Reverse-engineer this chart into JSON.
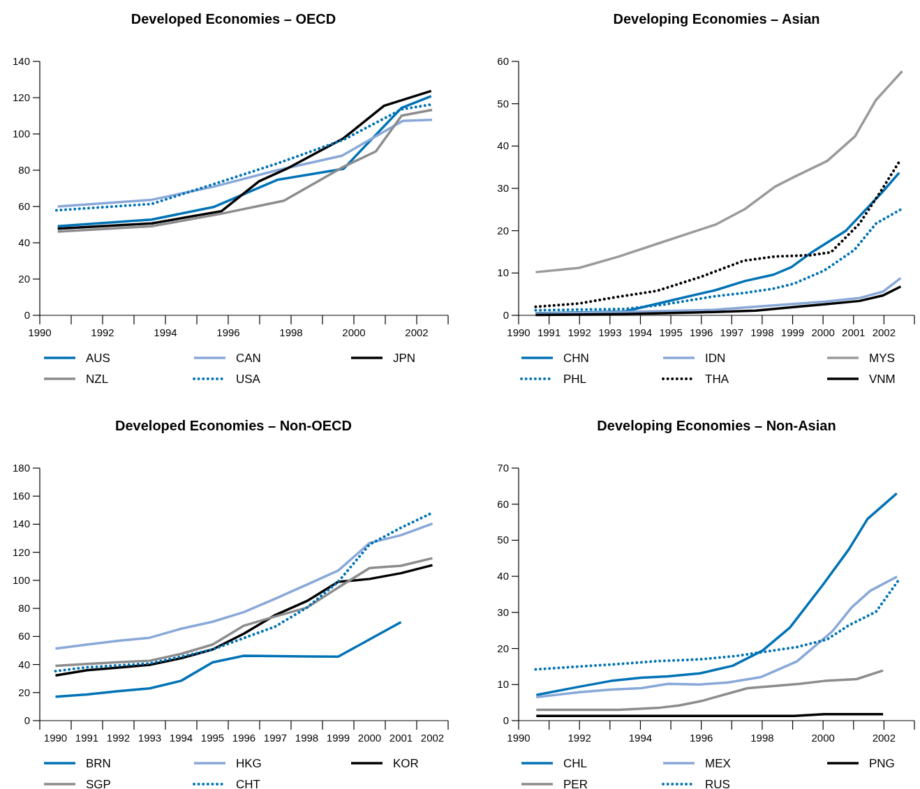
{
  "chart_data": [
    {
      "type": "line",
      "title": "Developed Economies – OECD",
      "xlim": [
        1990,
        2003
      ],
      "ylim": [
        0,
        140
      ],
      "yticks": [
        0,
        20,
        40,
        60,
        80,
        100,
        120,
        140
      ],
      "xticks": [
        1990,
        {
          "value": 1991,
          "label": null
        },
        1992,
        {
          "value": 1993,
          "label": null
        },
        1994,
        {
          "value": 1995,
          "label": null
        },
        1996,
        {
          "value": 1997,
          "label": null
        },
        1998,
        {
          "value": 1999,
          "label": null
        },
        2000,
        {
          "value": 2001,
          "label": null
        },
        2002,
        {
          "value": 2003,
          "label": null
        }
      ],
      "grid": false,
      "legend": "bottom",
      "series": [
        {
          "name": "AUS",
          "color": "#0072b5",
          "x": [
            1990.57,
            1993.56,
            1995.53,
            1997.56,
            1999.67,
            2001.52,
            2002.46
          ],
          "values": [
            49.1,
            52.8,
            59.7,
            74.7,
            80.8,
            114.4,
            120.8
          ]
        },
        {
          "name": "CAN",
          "color": "#88a8d8",
          "x": [
            1990.57,
            1993.56,
            1995.53,
            1997.56,
            1999.62,
            2001.56,
            2002.49
          ],
          "values": [
            60,
            63.7,
            70.9,
            80,
            88,
            107.2,
            107.8
          ]
        },
        {
          "name": "JPN",
          "color": "#000000",
          "x": [
            1990.57,
            1993.56,
            1995.78,
            1996.98,
            1997.86,
            1999.67,
            2000.96,
            2002.46
          ],
          "values": [
            47.8,
            50.7,
            57.4,
            73.9,
            80.8,
            97.6,
            115.5,
            123.7
          ]
        },
        {
          "name": "NZL",
          "color": "#8c8c8c",
          "x": [
            1990.57,
            1993.56,
            1995.78,
            1997.77,
            1999.67,
            2000.7,
            2001.52,
            2002.49
          ],
          "values": [
            46.2,
            49.1,
            56,
            63.2,
            81.9,
            90.4,
            110.1,
            113.3
          ]
        },
        {
          "name": "USA",
          "color": "#0072b5",
          "line_style": "dotted",
          "x": [
            1990.53,
            1993.56,
            1995.53,
            1997.56,
            1999.67,
            2001.52,
            2002.49
          ],
          "values": [
            57.9,
            61.4,
            72.3,
            83.7,
            96.8,
            113.6,
            116.3
          ]
        }
      ]
    },
    {
      "type": "line",
      "title": "Developing Economies – Asian",
      "xlim": [
        1990,
        2003
      ],
      "ylim": [
        0,
        60
      ],
      "yticks": [
        0,
        10,
        20,
        30,
        40,
        50,
        60
      ],
      "xticks": [
        1990,
        1991,
        1992,
        1993,
        1994,
        1995,
        1996,
        1997,
        1998,
        1999,
        2000,
        2001,
        2002,
        {
          "value": 2003,
          "label": null
        }
      ],
      "grid": false,
      "legend": "bottom",
      "series": [
        {
          "name": "CHN",
          "color": "#0072b5",
          "x": [
            1990.56,
            1993.48,
            1995.0,
            1996.44,
            1997.43,
            1998.37,
            1998.96,
            1999.59,
            2000.75,
            2001.97,
            2002.5
          ],
          "values": [
            0.5,
            0.9,
            3.5,
            5.9,
            8.1,
            9.6,
            11.4,
            14.7,
            20.0,
            29.3,
            33.7
          ]
        },
        {
          "name": "IDN",
          "color": "#88a8d8",
          "x": [
            1990.56,
            1993.48,
            1996.44,
            1998.69,
            2000.04,
            2001.2,
            2001.97,
            2002.55
          ],
          "values": [
            0.4,
            0.8,
            1.3,
            2.5,
            3.2,
            4.1,
            5.6,
            8.8
          ]
        },
        {
          "name": "MYS",
          "color": "#9a9a9a",
          "x": [
            1990.56,
            1991.99,
            1993.3,
            1994.55,
            1996.49,
            1997.43,
            1998.42,
            1999.05,
            2000.14,
            2001.05,
            2001.74,
            2002.6
          ],
          "values": [
            10.2,
            11.2,
            13.9,
            16.9,
            21.5,
            25.1,
            30.4,
            32.7,
            36.5,
            42.3,
            50.9,
            57.7
          ]
        },
        {
          "name": "PHL",
          "color": "#0072b5",
          "line_style": "dotted",
          "x": [
            1990.56,
            1993.48,
            1994.73,
            1996.44,
            1997.43,
            1998.37,
            1999.05,
            2000.04,
            2001.02,
            2001.74,
            2002.55
          ],
          "values": [
            1.2,
            1.5,
            2.5,
            4.5,
            5.3,
            6.3,
            7.5,
            10.6,
            15.4,
            21.7,
            25.0
          ]
        },
        {
          "name": "THA",
          "color": "#000000",
          "line_style": "dotted",
          "x": [
            1990.56,
            1991.99,
            1993.12,
            1994.55,
            1995.99,
            1997.39,
            1998.42,
            1999.59,
            2000.26,
            2001.2,
            2001.92,
            2002.52
          ],
          "values": [
            2.0,
            2.8,
            4.2,
            5.8,
            9.1,
            12.9,
            13.9,
            14.2,
            14.9,
            21.7,
            29.6,
            36.5
          ]
        },
        {
          "name": "VNM",
          "color": "#000000",
          "x": [
            1990.56,
            1993.48,
            1995.99,
            1997.79,
            1999.14,
            2000.04,
            2001.2,
            2001.97,
            2002.55
          ],
          "values": [
            0.1,
            0.3,
            0.7,
            1.1,
            2.0,
            2.6,
            3.4,
            4.7,
            6.8
          ]
        }
      ]
    },
    {
      "type": "line",
      "title": "Developed Economies – Non-OECD",
      "categories": [
        "1990",
        "1991",
        "1992",
        "1993",
        "1994",
        "1995",
        "1996",
        "1997",
        "1998",
        "1999",
        "2000",
        "2001",
        "2002"
      ],
      "ylim": [
        0,
        180
      ],
      "yticks": [
        0,
        20,
        40,
        60,
        80,
        100,
        120,
        140,
        160,
        180
      ],
      "grid": false,
      "legend": "bottom",
      "series": [
        {
          "name": "BRN",
          "color": "#0072b5",
          "values": [
            17,
            18.7,
            21,
            23,
            28.4,
            41.5,
            46.2,
            46,
            45.8,
            45.6,
            57.9,
            70.2,
            null
          ]
        },
        {
          "name": "HKG",
          "color": "#88a8d8",
          "values": [
            51.3,
            54.2,
            56.9,
            59.1,
            65.5,
            70.5,
            77.4,
            87,
            96.9,
            107,
            126.6,
            132.2,
            140.4
          ]
        },
        {
          "name": "KOR",
          "color": "#000000",
          "values": [
            32.2,
            35.9,
            37.8,
            39.8,
            44.5,
            50.7,
            62,
            75.3,
            85.2,
            98.9,
            101,
            105.1,
            110.8
          ]
        },
        {
          "name": "SGP",
          "color": "#8c8c8c",
          "values": [
            39,
            40.4,
            41.7,
            42.7,
            47.6,
            54.2,
            67.7,
            74.3,
            80.5,
            94.8,
            108.8,
            110.4,
            115.8
          ]
        },
        {
          "name": "CHT",
          "color": "#0072b5",
          "line_style": "dotted",
          "values": [
            35.3,
            38,
            39.4,
            40.8,
            45.6,
            50.7,
            58.9,
            67.1,
            80.5,
            98.9,
            125.6,
            137.5,
            148.2
          ]
        }
      ]
    },
    {
      "type": "line",
      "title": "Developing Economies – Non-Asian",
      "xlim": [
        1990,
        2003
      ],
      "ylim": [
        0,
        70
      ],
      "yticks": [
        0,
        10,
        20,
        30,
        40,
        50,
        60,
        70
      ],
      "xticks": [
        1990,
        {
          "value": 1991,
          "label": null
        },
        1992,
        {
          "value": 1993,
          "label": null
        },
        1994,
        {
          "value": 1995,
          "label": null
        },
        1996,
        {
          "value": 1997,
          "label": null
        },
        1998,
        {
          "value": 1999,
          "label": null
        },
        2000,
        {
          "value": 2001,
          "label": null
        },
        2002,
        {
          "value": 2003,
          "label": null
        }
      ],
      "grid": false,
      "legend": "bottom",
      "series": [
        {
          "name": "CHL",
          "color": "#0072b5",
          "x": [
            1990.58,
            1991.99,
            1993.03,
            1994.02,
            1994.91,
            1995.95,
            1997.03,
            1998.01,
            1998.91,
            1999.99,
            2000.84,
            2001.46,
            2002.42
          ],
          "values": [
            7.1,
            9.4,
            11.0,
            11.9,
            12.3,
            13.1,
            15.2,
            19.4,
            25.8,
            37.6,
            47.4,
            55.9,
            63.0
          ]
        },
        {
          "name": "MEX",
          "color": "#88a8d8",
          "x": [
            1990.58,
            1991.99,
            1993.03,
            1994.02,
            1994.91,
            1995.95,
            1996.89,
            1997.97,
            1999.14,
            2000.31,
            2000.94,
            2001.55,
            2002.43
          ],
          "values": [
            6.5,
            7.9,
            8.6,
            9.0,
            10.2,
            10.0,
            10.6,
            12.1,
            16.4,
            24.8,
            31.4,
            36.0,
            39.9
          ]
        },
        {
          "name": "PNG",
          "color": "#000000",
          "x": [
            1990.58,
            1999.05,
            2000.04,
            2001.97
          ],
          "values": [
            1.3,
            1.3,
            1.8,
            1.8
          ]
        },
        {
          "name": "PER",
          "color": "#8c8c8c",
          "x": [
            1990.58,
            1993.3,
            1994.65,
            1995.27,
            1995.99,
            1997.52,
            1999.23,
            2000.04,
            2001.1,
            2001.97
          ],
          "values": [
            3.0,
            3.0,
            3.6,
            4.2,
            5.4,
            9.0,
            10.2,
            11.0,
            11.5,
            13.9
          ]
        },
        {
          "name": "RUS",
          "color": "#0072b5",
          "line_style": "dotted",
          "x": [
            1990.56,
            1991.99,
            1993.3,
            1994.55,
            1995.99,
            1997.12,
            1998.01,
            1999.14,
            2000.13,
            2000.84,
            2001.74,
            2002.46
          ],
          "values": [
            14.2,
            15.0,
            15.7,
            16.5,
            17.0,
            17.9,
            19.0,
            20.4,
            22.5,
            26.4,
            30.2,
            38.7
          ]
        }
      ]
    }
  ]
}
